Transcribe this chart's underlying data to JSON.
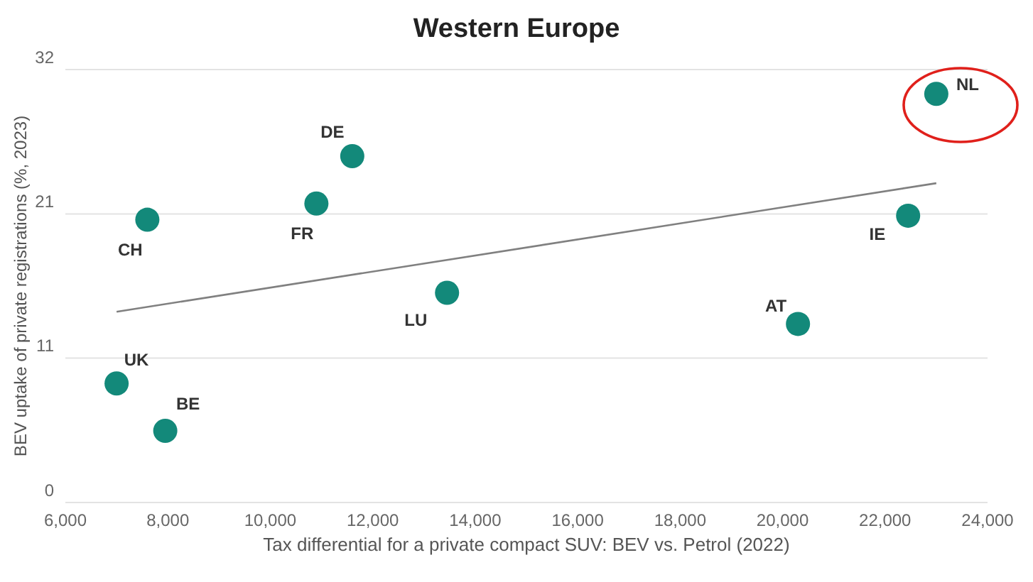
{
  "chart_data": {
    "type": "scatter",
    "title": "Western Europe",
    "xlabel": "Tax differential for a private compact SUV: BEV vs. Petrol (2022)",
    "ylabel": "BEV uptake of private registrations (%, 2023)",
    "series": [
      {
        "color": "#13897a",
        "marker": "circle",
        "x": [
          7000,
          7950,
          7600,
          10900,
          11600,
          13450,
          20300,
          22450,
          23000
        ],
        "values": [
          8.8,
          5.3,
          20.9,
          22.1,
          25.6,
          15.5,
          13.2,
          21.2,
          30.2
        ]
      },
      {
        "type": "line",
        "color": "#808080",
        "x": [
          7000,
          23000
        ],
        "values": [
          14.1,
          23.6
        ]
      }
    ],
    "annotations": [
      {
        "text": "UK",
        "x": 7000,
        "y": 8.8
      },
      {
        "text": "BE",
        "x": 7950,
        "y": 5.3
      },
      {
        "text": "CH",
        "x": 7600,
        "y": 20.9
      },
      {
        "text": "FR",
        "x": 10900,
        "y": 22.1
      },
      {
        "text": "DE",
        "x": 11600,
        "y": 25.6
      },
      {
        "text": "LU",
        "x": 13450,
        "y": 15.5
      },
      {
        "text": "AT",
        "x": 20300,
        "y": 13.2
      },
      {
        "text": "IE",
        "x": 22450,
        "y": 21.2
      },
      {
        "text": "NL",
        "x": 23000,
        "y": 30.2
      }
    ],
    "xlim": [
      6000,
      24000
    ],
    "xticks": [
      {
        "value": 6000,
        "label": "6,000"
      },
      {
        "value": 8000,
        "label": "8,000"
      },
      {
        "value": 10000,
        "label": "10,000"
      },
      {
        "value": 12000,
        "label": "12,000"
      },
      {
        "value": 14000,
        "label": "14,000"
      },
      {
        "value": 16000,
        "label": "16,000"
      },
      {
        "value": 18000,
        "label": "18,000"
      },
      {
        "value": 20000,
        "label": "20,000"
      },
      {
        "value": 22000,
        "label": "22,000"
      },
      {
        "value": 24000,
        "label": "24,000"
      }
    ],
    "ylim": [
      0,
      32
    ],
    "yticks": [
      0,
      {
        "value": 10.67,
        "label": "11"
      },
      {
        "value": 21.33,
        "label": "21"
      },
      32
    ],
    "grid": "y",
    "legend": false
  }
}
